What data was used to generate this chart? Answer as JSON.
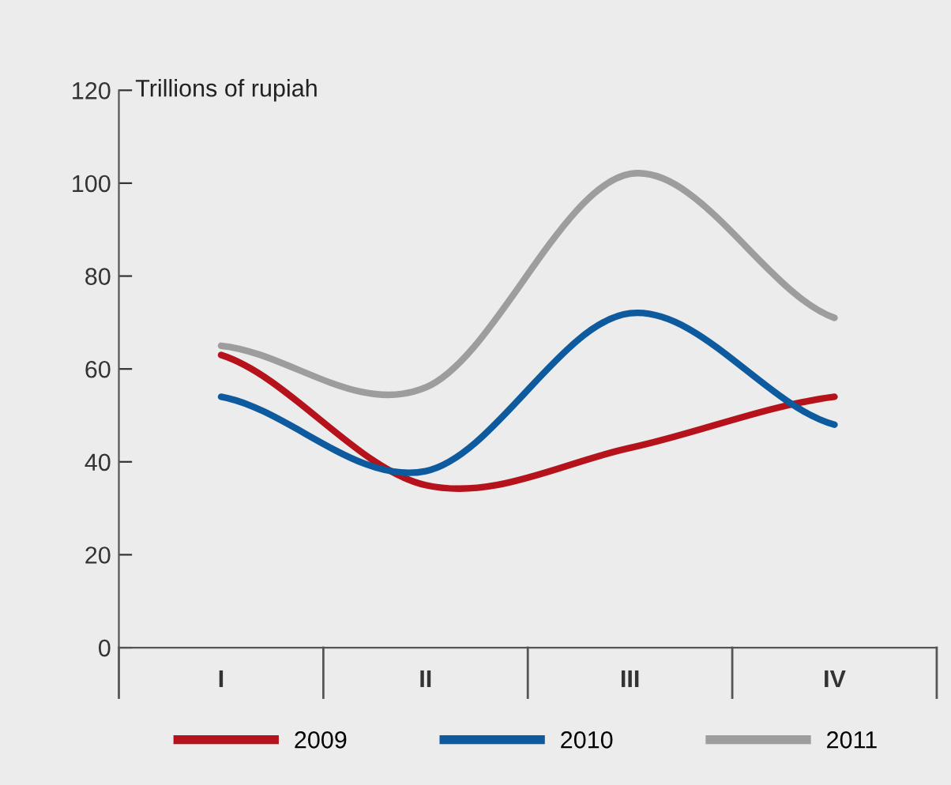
{
  "chart_data": {
    "type": "line",
    "ylabel": "Trillions of rupiah",
    "categories": [
      "I",
      "II",
      "III",
      "IV"
    ],
    "series": [
      {
        "name": "2009",
        "color": "#b5121b",
        "values": [
          63,
          35,
          43,
          54
        ]
      },
      {
        "name": "2010",
        "color": "#0d5a9e",
        "values": [
          54,
          38,
          72,
          48
        ]
      },
      {
        "name": "2011",
        "color": "#9d9d9d",
        "values": [
          65,
          56,
          102,
          71
        ]
      }
    ],
    "ylim": [
      0,
      120
    ],
    "yticks": [
      0,
      20,
      40,
      60,
      80,
      100,
      120
    ],
    "grid": false,
    "legend": "bottom",
    "marker": "none",
    "line_style": "solid"
  }
}
